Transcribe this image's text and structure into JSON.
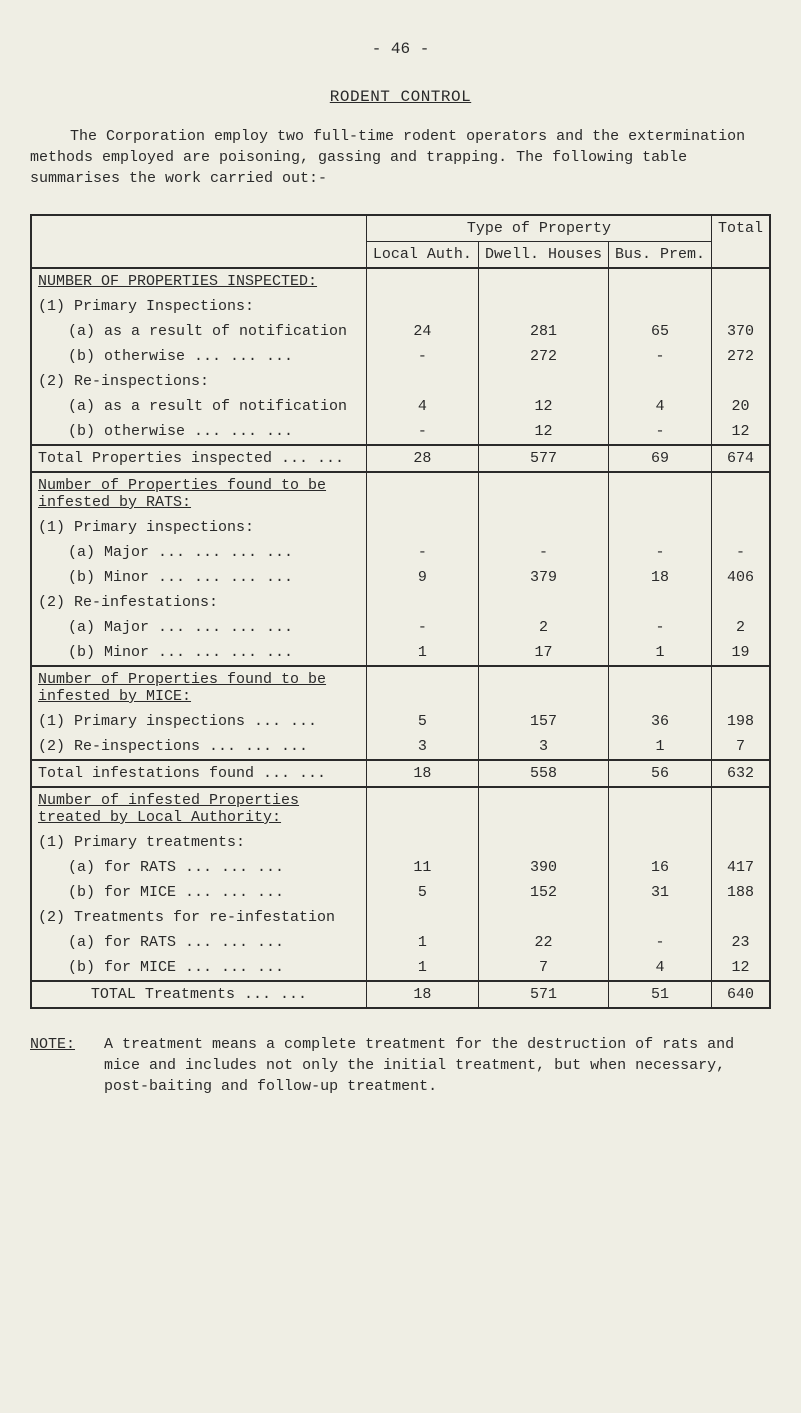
{
  "page_number": "- 46 -",
  "title": "RODENT CONTROL",
  "intro": "The Corporation employ two full-time rodent operators and the extermination methods employed are poisoning, gassing and trapping.  The following table summarises the work carried out:-",
  "headers": {
    "type_of_property": "Type of Property",
    "local_auth": "Local Auth.",
    "dwell_houses": "Dwell. Houses",
    "bus_prem": "Bus. Prem.",
    "total": "Total"
  },
  "sections": {
    "inspected": "NUMBER OF PROPERTIES INSPECTED:",
    "primary_insp": "(1)  Primary Inspections:",
    "p_a": "(a)  as a result of notification",
    "p_b": "(b)  otherwise   ...   ...   ...",
    "reinsp": "(2)  Re-inspections:",
    "r_a": "(a)  as a result of notification",
    "r_b": "(b)  otherwise   ...   ...   ...",
    "total_props": "Total Properties inspected  ...   ...",
    "rats_head": "Number of Properties found to be infested by RATS:",
    "rats1": "(1)  Primary inspections:",
    "rats_a": "(a)  Major ...   ...   ...   ...",
    "rats_b": "(b)  Minor ...   ...   ...   ...",
    "rats2": "(2)  Re-infestations:",
    "rats2a": "(a)  Major ...   ...   ...   ...",
    "rats2b": "(b)  Minor ...   ...   ...   ...",
    "mice_head": "Number of Properties found to be infested by MICE:",
    "mice1": "(1)  Primary inspections    ...   ...",
    "mice2": "(2)  Re-inspections    ...   ...   ...",
    "total_inf": "Total infestations found     ...   ...",
    "treated_head": "Number of infested Properties treated by Local Authority:",
    "treat1": "(1)  Primary treatments:",
    "treat1a": "(a)  for RATS    ...   ...   ...",
    "treat1b": "(b)  for MICE    ...   ...   ...",
    "treat2": "(2)  Treatments for re-infestation",
    "treat2a": "(a)  for RATS    ...   ...   ...",
    "treat2b": "(b)  for MICE    ...   ...   ...",
    "total_treat": "TOTAL Treatments    ...   ..."
  },
  "vals": {
    "p_a": {
      "l": "24",
      "d": "281",
      "b": "65",
      "t": "370"
    },
    "p_b": {
      "l": "-",
      "d": "272",
      "b": "-",
      "t": "272"
    },
    "r_a": {
      "l": "4",
      "d": "12",
      "b": "4",
      "t": "20"
    },
    "r_b": {
      "l": "-",
      "d": "12",
      "b": "-",
      "t": "12"
    },
    "total_props": {
      "l": "28",
      "d": "577",
      "b": "69",
      "t": "674"
    },
    "rats_a": {
      "l": "-",
      "d": "-",
      "b": "-",
      "t": "-"
    },
    "rats_b": {
      "l": "9",
      "d": "379",
      "b": "18",
      "t": "406"
    },
    "rats2a": {
      "l": "-",
      "d": "2",
      "b": "-",
      "t": "2"
    },
    "rats2b": {
      "l": "1",
      "d": "17",
      "b": "1",
      "t": "19"
    },
    "mice1": {
      "l": "5",
      "d": "157",
      "b": "36",
      "t": "198"
    },
    "mice2": {
      "l": "3",
      "d": "3",
      "b": "1",
      "t": "7"
    },
    "total_inf": {
      "l": "18",
      "d": "558",
      "b": "56",
      "t": "632"
    },
    "treat1a": {
      "l": "11",
      "d": "390",
      "b": "16",
      "t": "417"
    },
    "treat1b": {
      "l": "5",
      "d": "152",
      "b": "31",
      "t": "188"
    },
    "treat2a": {
      "l": "1",
      "d": "22",
      "b": "-",
      "t": "23"
    },
    "treat2b": {
      "l": "1",
      "d": "7",
      "b": "4",
      "t": "12"
    },
    "total_treat": {
      "l": "18",
      "d": "571",
      "b": "51",
      "t": "640"
    }
  },
  "note_label": "NOTE:",
  "note_body": "A treatment means a complete treatment for the destruction of rats and mice and includes not only the initial treatment, but when necessary, post-baiting and follow-up treatment."
}
